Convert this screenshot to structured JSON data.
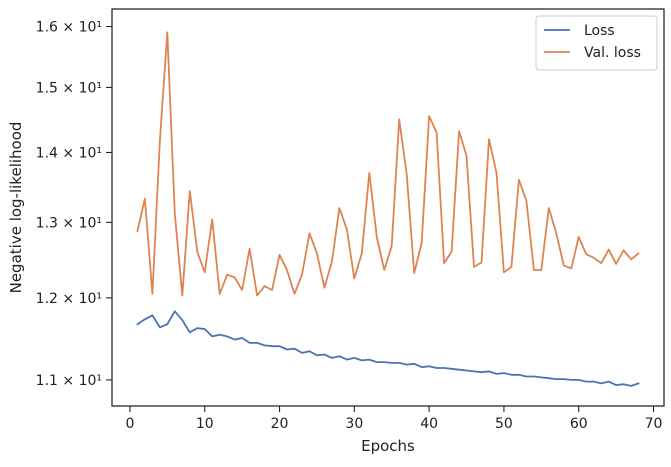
{
  "chart_data": {
    "type": "line",
    "xlabel": "Epochs",
    "ylabel": "Negative log-likelihood",
    "xlim": [
      -2.4,
      71.4
    ],
    "ylim": [
      10.7,
      16.3
    ],
    "yscale": "log",
    "grid": false,
    "legend": "top-right",
    "x_ticks": [
      {
        "value": 0,
        "label": "0"
      },
      {
        "value": 10,
        "label": "10"
      },
      {
        "value": 20,
        "label": "20"
      },
      {
        "value": 30,
        "label": "30"
      },
      {
        "value": 40,
        "label": "40"
      },
      {
        "value": 50,
        "label": "50"
      },
      {
        "value": 60,
        "label": "60"
      },
      {
        "value": 70,
        "label": "70"
      }
    ],
    "y_ticks": [
      {
        "value": 11,
        "label": "1.1 × 10¹"
      },
      {
        "value": 12,
        "label": "1.2 × 10¹"
      },
      {
        "value": 13,
        "label": "1.3 × 10¹"
      },
      {
        "value": 14,
        "label": "1.4 × 10¹"
      },
      {
        "value": 15,
        "label": "1.5 × 10¹"
      },
      {
        "value": 16,
        "label": "1.6 × 10¹"
      }
    ],
    "x": [
      1,
      2,
      3,
      4,
      5,
      6,
      7,
      8,
      9,
      10,
      11,
      12,
      13,
      14,
      15,
      16,
      17,
      18,
      19,
      20,
      21,
      22,
      23,
      24,
      25,
      26,
      27,
      28,
      29,
      30,
      31,
      32,
      33,
      34,
      35,
      36,
      37,
      38,
      39,
      40,
      41,
      42,
      43,
      44,
      45,
      46,
      47,
      48,
      49,
      50,
      51,
      52,
      53,
      54,
      55,
      56,
      57,
      58,
      59,
      60,
      61,
      62,
      63,
      64,
      65,
      66,
      67,
      68
    ],
    "series": [
      {
        "name": "Loss",
        "color": "#4c72b0",
        "values": [
          11.67,
          11.73,
          11.78,
          11.63,
          11.67,
          11.83,
          11.72,
          11.57,
          11.62,
          11.61,
          11.52,
          11.54,
          11.52,
          11.48,
          11.5,
          11.44,
          11.44,
          11.41,
          11.4,
          11.4,
          11.36,
          11.37,
          11.32,
          11.34,
          11.29,
          11.3,
          11.26,
          11.28,
          11.24,
          11.26,
          11.23,
          11.24,
          11.21,
          11.21,
          11.2,
          11.2,
          11.18,
          11.19,
          11.15,
          11.16,
          11.14,
          11.14,
          11.13,
          11.12,
          11.11,
          11.1,
          11.09,
          11.1,
          11.07,
          11.08,
          11.06,
          11.06,
          11.04,
          11.04,
          11.03,
          11.02,
          11.01,
          11.01,
          11.0,
          11.0,
          10.98,
          10.98,
          10.96,
          10.98,
          10.94,
          10.95,
          10.93,
          10.96
        ]
      },
      {
        "name": "Val. loss",
        "color": "#dd8452",
        "values": [
          12.88,
          13.33,
          12.05,
          14.18,
          15.9,
          13.12,
          12.03,
          13.44,
          12.6,
          12.33,
          13.04,
          12.05,
          12.3,
          12.26,
          12.1,
          12.64,
          12.03,
          12.15,
          12.1,
          12.56,
          12.36,
          12.05,
          12.3,
          12.85,
          12.58,
          12.13,
          12.47,
          13.2,
          12.9,
          12.25,
          12.58,
          13.7,
          12.8,
          12.36,
          12.68,
          14.5,
          13.68,
          12.32,
          12.72,
          14.55,
          14.3,
          12.45,
          12.6,
          14.32,
          13.95,
          12.4,
          12.46,
          14.2,
          13.7,
          12.33,
          12.4,
          13.6,
          13.3,
          12.36,
          12.36,
          13.2,
          12.85,
          12.42,
          12.38,
          12.8,
          12.57,
          12.52,
          12.45,
          12.63,
          12.44,
          12.62,
          12.5,
          12.58
        ]
      }
    ]
  }
}
